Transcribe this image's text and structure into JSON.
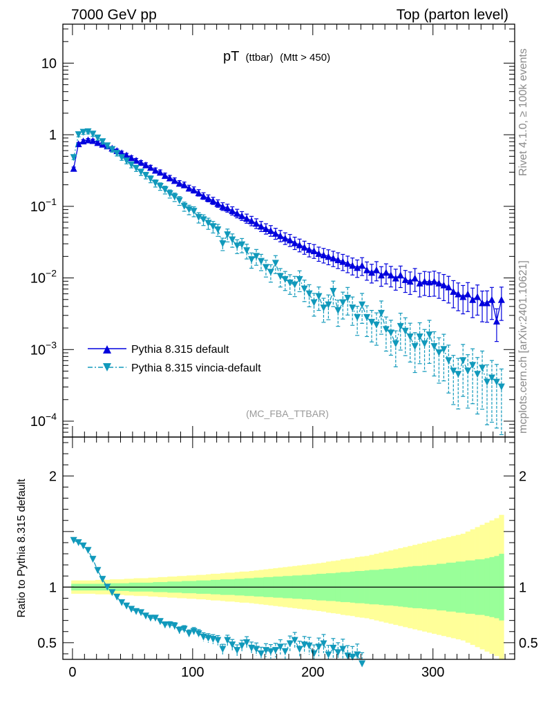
{
  "header": {
    "left": "7000 GeV pp",
    "right": "Top (parton level)"
  },
  "side": {
    "rivet": "Rivet 4.1.0, ≥ 100k events",
    "mcplots": "mcplots.cern.ch [arXiv:2401.10621]"
  },
  "colors": {
    "default": "#0000dd",
    "vincia": "#1199bb",
    "band_yellow": "#ffff99",
    "band_green": "#99ff99"
  },
  "chart_data": [
    {
      "type": "scatter",
      "title_main": "pT",
      "title_sub": "(ttbar)",
      "title_cut": "(Mtt > 450)",
      "watermark": "(MC_FBA_TTBAR)",
      "yscale": "log",
      "xlim": [
        -8,
        368
      ],
      "ylim": [
        6e-05,
        35
      ],
      "y_ticks": [
        {
          "v": 10,
          "mant": "10",
          "exp": ""
        },
        {
          "v": 1,
          "mant": "1",
          "exp": ""
        },
        {
          "v": 0.1,
          "mant": "10",
          "exp": "−1"
        },
        {
          "v": 0.01,
          "mant": "10",
          "exp": "−2"
        },
        {
          "v": 0.001,
          "mant": "10",
          "exp": "−3"
        },
        {
          "v": 0.0001,
          "mant": "10",
          "exp": "−4"
        }
      ],
      "legend": [
        "Pythia 8.315 default",
        "Pythia 8.315 vincia-default"
      ],
      "legend_position": "bottom-left",
      "series": [
        {
          "name": "Pythia 8.315 default",
          "marker": "triangle-up",
          "x": [
            1,
            5,
            9,
            13,
            17,
            21,
            25,
            29,
            33,
            37,
            41,
            45,
            49,
            53,
            57,
            61,
            65,
            69,
            73,
            77,
            81,
            85,
            89,
            93,
            97,
            101,
            105,
            109,
            113,
            117,
            121,
            125,
            129,
            133,
            137,
            141,
            145,
            149,
            153,
            157,
            161,
            165,
            169,
            173,
            177,
            181,
            185,
            189,
            193,
            197,
            201,
            205,
            209,
            213,
            217,
            221,
            225,
            229,
            233,
            237,
            241,
            245,
            249,
            253,
            257,
            261,
            265,
            269,
            273,
            277,
            281,
            285,
            289,
            293,
            297,
            301,
            305,
            309,
            313,
            317,
            321,
            325,
            329,
            333,
            337,
            341,
            345,
            349,
            353,
            357
          ],
          "values": [
            0.34,
            0.75,
            0.82,
            0.85,
            0.83,
            0.78,
            0.74,
            0.7,
            0.65,
            0.6,
            0.56,
            0.52,
            0.48,
            0.44,
            0.41,
            0.38,
            0.35,
            0.32,
            0.3,
            0.27,
            0.25,
            0.23,
            0.21,
            0.2,
            0.18,
            0.17,
            0.155,
            0.14,
            0.13,
            0.12,
            0.11,
            0.1,
            0.095,
            0.087,
            0.08,
            0.074,
            0.068,
            0.063,
            0.058,
            0.053,
            0.049,
            0.046,
            0.042,
            0.039,
            0.036,
            0.034,
            0.031,
            0.029,
            0.027,
            0.025,
            0.024,
            0.022,
            0.021,
            0.02,
            0.019,
            0.018,
            0.017,
            0.016,
            0.015,
            0.014,
            0.015,
            0.013,
            0.012,
            0.013,
            0.011,
            0.012,
            0.011,
            0.01,
            0.011,
            0.0095,
            0.009,
            0.01,
            0.0085,
            0.009,
            0.0088,
            0.009,
            0.0085,
            0.008,
            0.0075,
            0.0065,
            0.006,
            0.0055,
            0.006,
            0.005,
            0.0055,
            0.0045,
            0.0045,
            0.005,
            0.0025,
            0.005
          ]
        },
        {
          "name": "Pythia 8.315 vincia-default",
          "marker": "triangle-down",
          "x": [
            1,
            5,
            9,
            13,
            17,
            21,
            25,
            29,
            33,
            37,
            41,
            45,
            49,
            53,
            57,
            61,
            65,
            69,
            73,
            77,
            81,
            85,
            89,
            93,
            97,
            101,
            105,
            109,
            113,
            117,
            121,
            125,
            129,
            133,
            137,
            141,
            145,
            149,
            153,
            157,
            161,
            165,
            169,
            173,
            177,
            181,
            185,
            189,
            193,
            197,
            201,
            205,
            209,
            213,
            217,
            221,
            225,
            229,
            233,
            237,
            241,
            245,
            249,
            253,
            257,
            261,
            265,
            269,
            273,
            277,
            281,
            285,
            289,
            293,
            297,
            301,
            305,
            309,
            313,
            317,
            321,
            325,
            329,
            333,
            337,
            341,
            345,
            349,
            353,
            357
          ],
          "values": [
            0.48,
            1.0,
            1.08,
            1.1,
            1.02,
            0.9,
            0.8,
            0.7,
            0.62,
            0.55,
            0.48,
            0.43,
            0.38,
            0.34,
            0.3,
            0.27,
            0.24,
            0.21,
            0.19,
            0.17,
            0.15,
            0.135,
            0.12,
            0.1,
            0.09,
            0.085,
            0.07,
            0.065,
            0.058,
            0.052,
            0.047,
            0.03,
            0.04,
            0.034,
            0.028,
            0.029,
            0.024,
            0.018,
            0.02,
            0.017,
            0.014,
            0.012,
            0.016,
            0.0105,
            0.0095,
            0.0085,
            0.008,
            0.0095,
            0.007,
            0.006,
            0.0045,
            0.0055,
            0.0038,
            0.0042,
            0.0065,
            0.0035,
            0.0045,
            0.0052,
            0.0038,
            0.0028,
            0.0042,
            0.0028,
            0.0024,
            0.0022,
            0.0032,
            0.0019,
            0.0017,
            0.0012,
            0.0021,
            0.0018,
            0.0015,
            0.0011,
            0.0015,
            0.0012,
            0.0016,
            0.0011,
            0.0009,
            0.001,
            0.0007,
            0.0005,
            0.00045,
            0.0007,
            0.0005,
            0.0006,
            0.00045,
            0.00055,
            0.00035,
            0.0004,
            0.00035,
            0.0003
          ]
        }
      ]
    },
    {
      "type": "scatter",
      "ylabel": "Ratio to Pythia 8.315 default",
      "xlim": [
        -8,
        368
      ],
      "ylim": [
        0.35,
        2.35
      ],
      "y_ticks": [
        {
          "v": 2,
          "label": "2"
        },
        {
          "v": 1,
          "label": "1"
        },
        {
          "v": 0.5,
          "label": "0.5"
        }
      ],
      "x_ticks": [
        0,
        100,
        200,
        300
      ],
      "x_tick_labels": [
        "0",
        "100",
        "200",
        "300"
      ],
      "reference_line": 1,
      "band_green_halfwidth": [
        0.03,
        0.03,
        0.03,
        0.03,
        0.03,
        0.03,
        0.03,
        0.03,
        0.035,
        0.035,
        0.035,
        0.035,
        0.04,
        0.04,
        0.04,
        0.04,
        0.04,
        0.045,
        0.045,
        0.045,
        0.05,
        0.05,
        0.05,
        0.055,
        0.055,
        0.055,
        0.06,
        0.06,
        0.06,
        0.065,
        0.065,
        0.07,
        0.07,
        0.07,
        0.075,
        0.075,
        0.08,
        0.08,
        0.085,
        0.085,
        0.09,
        0.09,
        0.095,
        0.095,
        0.1,
        0.1,
        0.105,
        0.105,
        0.11,
        0.11,
        0.115,
        0.12,
        0.12,
        0.125,
        0.125,
        0.13,
        0.135,
        0.135,
        0.14,
        0.145,
        0.145,
        0.15,
        0.155,
        0.155,
        0.16,
        0.165,
        0.165,
        0.17,
        0.175,
        0.18,
        0.185,
        0.19,
        0.19,
        0.195,
        0.2,
        0.2,
        0.21,
        0.21,
        0.22,
        0.22,
        0.23,
        0.23,
        0.24,
        0.24,
        0.25,
        0.25,
        0.26,
        0.27,
        0.28,
        0.3
      ],
      "band_yellow_halfwidth": [
        0.06,
        0.06,
        0.06,
        0.06,
        0.06,
        0.065,
        0.065,
        0.065,
        0.07,
        0.07,
        0.07,
        0.075,
        0.075,
        0.08,
        0.08,
        0.08,
        0.085,
        0.085,
        0.09,
        0.09,
        0.095,
        0.095,
        0.1,
        0.1,
        0.105,
        0.105,
        0.11,
        0.11,
        0.115,
        0.12,
        0.12,
        0.125,
        0.13,
        0.13,
        0.135,
        0.14,
        0.14,
        0.145,
        0.15,
        0.155,
        0.16,
        0.165,
        0.17,
        0.175,
        0.18,
        0.185,
        0.19,
        0.195,
        0.2,
        0.205,
        0.21,
        0.215,
        0.22,
        0.23,
        0.235,
        0.24,
        0.25,
        0.255,
        0.26,
        0.27,
        0.275,
        0.28,
        0.29,
        0.3,
        0.31,
        0.32,
        0.33,
        0.34,
        0.35,
        0.36,
        0.37,
        0.38,
        0.39,
        0.4,
        0.41,
        0.42,
        0.43,
        0.44,
        0.45,
        0.46,
        0.47,
        0.48,
        0.5,
        0.52,
        0.54,
        0.56,
        0.58,
        0.6,
        0.62,
        0.65
      ],
      "series": [
        {
          "name": "Pythia 8.315 vincia-default",
          "marker": "triangle-down",
          "x": [
            1,
            5,
            9,
            13,
            17,
            21,
            25,
            29,
            33,
            37,
            41,
            45,
            49,
            53,
            57,
            61,
            65,
            69,
            73,
            77,
            81,
            85,
            89,
            93,
            97,
            101,
            105,
            109,
            113,
            117,
            121,
            125,
            129,
            133,
            137,
            141,
            145,
            149,
            153,
            157,
            161,
            165,
            169,
            173,
            177,
            181,
            185,
            189,
            193,
            197,
            201,
            205,
            209,
            213,
            217,
            221,
            225,
            229,
            233,
            237,
            241
          ],
          "values": [
            1.42,
            1.4,
            1.37,
            1.33,
            1.25,
            1.15,
            1.07,
            1.0,
            0.95,
            0.91,
            0.86,
            0.83,
            0.8,
            0.78,
            0.77,
            0.74,
            0.72,
            0.72,
            0.69,
            0.66,
            0.66,
            0.65,
            0.61,
            0.62,
            0.58,
            0.6,
            0.58,
            0.55,
            0.54,
            0.53,
            0.52,
            0.44,
            0.52,
            0.48,
            0.43,
            0.47,
            0.5,
            0.45,
            0.44,
            0.4,
            0.43,
            0.42,
            0.43,
            0.46,
            0.42,
            0.49,
            0.52,
            0.44,
            0.48,
            0.47,
            0.4,
            0.46,
            0.49,
            0.39,
            0.45,
            0.41,
            0.44,
            0.38,
            0.37,
            0.39,
            0.31
          ]
        }
      ]
    }
  ]
}
